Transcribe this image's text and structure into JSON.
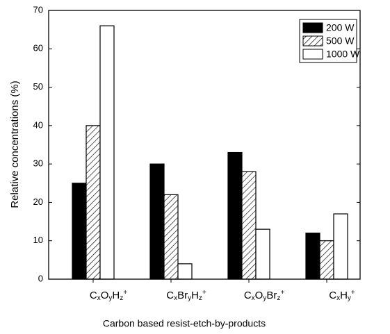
{
  "chart_data": {
    "type": "bar",
    "x_label": "Carbon based resist-etch-by-products",
    "y_label": "Relative concentrations (%)",
    "categories": [
      [
        {
          "text": "C"
        },
        {
          "text": "x",
          "script": "sub"
        },
        {
          "text": "O"
        },
        {
          "text": "y",
          "script": "sub"
        },
        {
          "text": "H"
        },
        {
          "text": "z",
          "script": "sub"
        },
        {
          "text": "+",
          "script": "super"
        }
      ],
      [
        {
          "text": "C"
        },
        {
          "text": "x",
          "script": "sub"
        },
        {
          "text": "Br"
        },
        {
          "text": "y",
          "script": "sub"
        },
        {
          "text": "H"
        },
        {
          "text": "z",
          "script": "sub"
        },
        {
          "text": "+",
          "script": "super"
        }
      ],
      [
        {
          "text": "C"
        },
        {
          "text": "x",
          "script": "sub"
        },
        {
          "text": "O"
        },
        {
          "text": "y",
          "script": "sub"
        },
        {
          "text": "Br"
        },
        {
          "text": "z",
          "script": "sub"
        },
        {
          "text": "+",
          "script": "super"
        }
      ],
      [
        {
          "text": "C"
        },
        {
          "text": "x",
          "script": "sub"
        },
        {
          "text": "H"
        },
        {
          "text": "y",
          "script": "sub"
        },
        {
          "text": "+",
          "script": "super"
        }
      ]
    ],
    "series": [
      {
        "name": "200 W",
        "color": "#000000",
        "fill": "solid",
        "values": [
          25,
          30,
          33,
          12
        ]
      },
      {
        "name": "500 W",
        "color": "#000000",
        "fill": "hatch",
        "values": [
          40,
          22,
          28,
          10
        ]
      },
      {
        "name": "1000 W",
        "color": "#000000",
        "fill": "empty",
        "values": [
          66,
          4,
          13,
          17
        ]
      }
    ],
    "ylim": [
      0,
      70
    ],
    "yticks": [
      0,
      10,
      20,
      30,
      40,
      50,
      60,
      70
    ],
    "legend": "top-right"
  }
}
